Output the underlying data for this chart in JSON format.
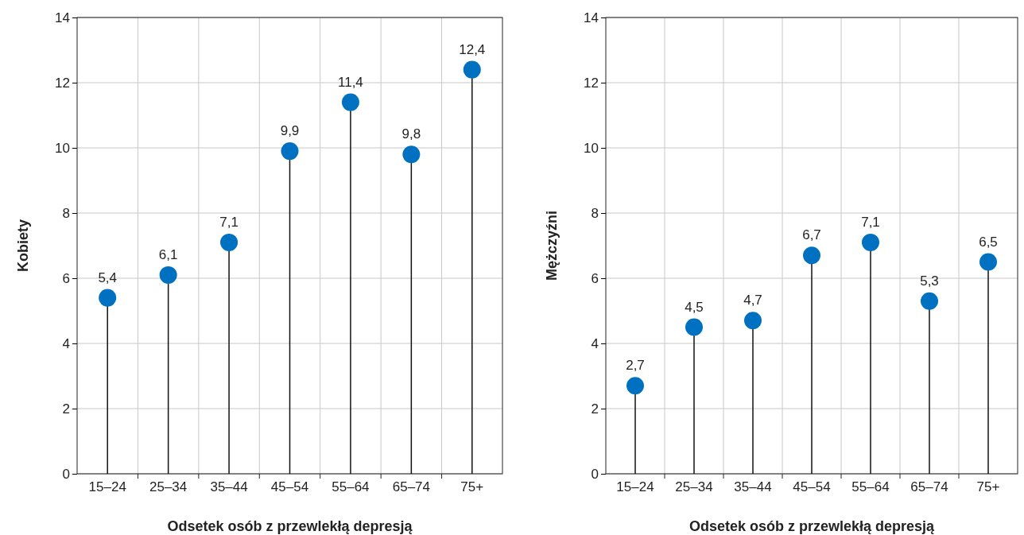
{
  "chart_data": [
    {
      "type": "lollipop",
      "xlabel": "Odsetek osób z przewlekłą depresją",
      "ylabel": "Kobiety",
      "categories": [
        "15–24",
        "25–34",
        "35–44",
        "45–54",
        "55–64",
        "65–74",
        "75+"
      ],
      "values": [
        5.4,
        6.1,
        7.1,
        9.9,
        11.4,
        9.8,
        12.4
      ],
      "value_labels": [
        "5,4",
        "6,1",
        "7,1",
        "9,9",
        "11,4",
        "9,8",
        "12,4"
      ],
      "color": "#0070c0",
      "ylim": [
        0,
        14
      ],
      "yticks": [
        0,
        2,
        4,
        6,
        8,
        10,
        12,
        14
      ],
      "grid": true,
      "marker": "circle"
    },
    {
      "type": "lollipop",
      "xlabel": "Odsetek osób z przewlekłą depresją",
      "ylabel": "Mężczyźni",
      "categories": [
        "15–24",
        "25–34",
        "35–44",
        "45–54",
        "55–64",
        "65–74",
        "75+"
      ],
      "values": [
        2.7,
        4.5,
        4.7,
        6.7,
        7.1,
        5.3,
        6.5
      ],
      "value_labels": [
        "2,7",
        "4,5",
        "4,7",
        "6,7",
        "7,1",
        "5,3",
        "6,5"
      ],
      "color": "#0070c0",
      "ylim": [
        0,
        14
      ],
      "yticks": [
        0,
        2,
        4,
        6,
        8,
        10,
        12,
        14
      ],
      "grid": true,
      "marker": "circle"
    }
  ]
}
